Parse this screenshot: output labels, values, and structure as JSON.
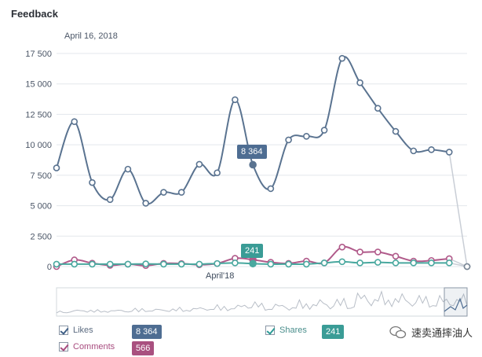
{
  "header": {
    "title": "Feedback",
    "date": "April 16, 2018"
  },
  "chart_data": {
    "type": "line",
    "y_ticks": [
      "17 500",
      "15 000",
      "12 500",
      "10 000",
      "7 500",
      "5 000",
      "2 500",
      "0"
    ],
    "ylim": [
      0,
      17500
    ],
    "x_label": "April'18",
    "series": [
      {
        "name": "Likes",
        "color": "#5a7390",
        "values": [
          8100,
          11900,
          6900,
          5500,
          8000,
          5200,
          6100,
          6100,
          8400,
          7700,
          13700,
          8364,
          6400,
          10400,
          10700,
          11200,
          17100,
          15100,
          13000,
          11100,
          9500,
          9600,
          9400,
          0
        ]
      },
      {
        "name": "Comments",
        "color": "#b05a8a",
        "values": [
          0,
          550,
          280,
          100,
          200,
          80,
          260,
          250,
          150,
          250,
          680,
          566,
          350,
          260,
          450,
          300,
          1600,
          1200,
          1200,
          850,
          450,
          500,
          650,
          0
        ]
      },
      {
        "name": "Shares",
        "color": "#49a89f",
        "values": [
          200,
          200,
          200,
          200,
          200,
          220,
          200,
          200,
          200,
          250,
          300,
          241,
          200,
          200,
          200,
          300,
          400,
          300,
          350,
          300,
          300,
          300,
          300,
          0
        ]
      }
    ],
    "highlight_index": 11,
    "tooltips": [
      {
        "series": "Likes",
        "value": "8 364"
      },
      {
        "series": "Shares",
        "value": "241"
      }
    ]
  },
  "legend": {
    "likes": {
      "label": "Likes",
      "value": "8 364",
      "color": "#4e6d92"
    },
    "comments": {
      "label": "Comments",
      "value": "566",
      "color": "#a9507f"
    },
    "shares": {
      "label": "Shares",
      "value": "241",
      "color": "#3a9c96"
    }
  },
  "watermark": {
    "text": "速卖通摔油人"
  }
}
